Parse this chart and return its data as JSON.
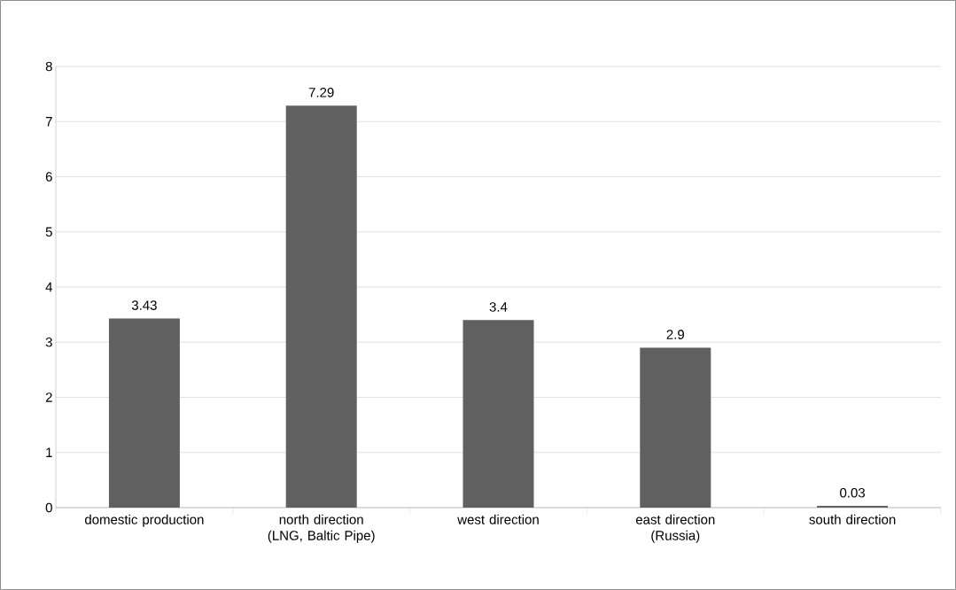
{
  "chart_data": {
    "type": "bar",
    "categories": [
      "domestic production",
      "north direction (LNG, Baltic Pipe)",
      "west direction",
      "east direction (Russia)",
      "south direction"
    ],
    "values": [
      3.43,
      7.29,
      3.4,
      2.9,
      0.03
    ],
    "color": "#606060",
    "ylim": [
      0,
      8
    ],
    "yticks": [
      0,
      1,
      2,
      3,
      4,
      5,
      6,
      7,
      8
    ],
    "grid": "y",
    "data_labels": true
  }
}
